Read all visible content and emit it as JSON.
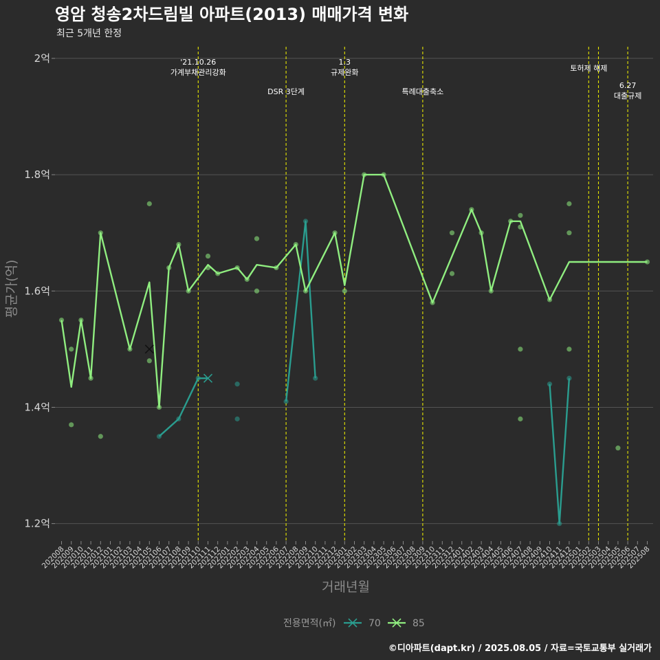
{
  "header": {
    "title": "영암 청송2차드림빌 아파트(2013) 매매가격 변화",
    "subtitle": "최근 5개년 한정"
  },
  "caption": "©디아파트(dapt.kr) / 2025.08.05 / 자료=국토교통부 실거래가",
  "chart_data": {
    "type": "line",
    "xlabel": "거래년월",
    "ylabel": "평균가(억)",
    "ylim": [
      1.17,
      2.02
    ],
    "yticks": [
      1.2,
      1.4,
      1.6,
      1.8,
      2.0
    ],
    "ytick_labels": [
      "1.2억",
      "1.4억",
      "1.6억",
      "1.8억",
      "2억"
    ],
    "grid": true,
    "legend": {
      "title": "전용면적(㎡)",
      "placement": "bottom"
    },
    "categories": [
      "202008",
      "202009",
      "202010",
      "202011",
      "202012",
      "202101",
      "202102",
      "202103",
      "202104",
      "202105",
      "202106",
      "202107",
      "202108",
      "202109",
      "202110",
      "202111",
      "202112",
      "202201",
      "202202",
      "202203",
      "202204",
      "202205",
      "202206",
      "202207",
      "202208",
      "202209",
      "202210",
      "202211",
      "202212",
      "202301",
      "202302",
      "202303",
      "202304",
      "202305",
      "202306",
      "202307",
      "202308",
      "202309",
      "202310",
      "202311",
      "202312",
      "202401",
      "202402",
      "202403",
      "202404",
      "202405",
      "202406",
      "202407",
      "202408",
      "202409",
      "202410",
      "202411",
      "202412",
      "202501",
      "202502",
      "202503",
      "202504",
      "202505",
      "202506",
      "202507",
      "202508"
    ],
    "series": [
      {
        "name": "70",
        "color": "#2a9d8f",
        "line_segments": [
          [
            [
              "202106",
              1.35
            ],
            [
              "202108",
              1.38
            ],
            [
              "202110",
              1.45
            ],
            [
              "202111",
              1.45
            ]
          ],
          [
            [
              "202207",
              1.41
            ],
            [
              "202209",
              1.72
            ],
            [
              "202210",
              1.45
            ]
          ],
          [
            [
              "202410",
              1.44
            ],
            [
              "202411",
              1.2
            ],
            [
              "202412",
              1.45
            ]
          ]
        ],
        "points": [
          [
            "202106",
            1.35
          ],
          [
            "202108",
            1.38
          ],
          [
            "202110",
            1.45
          ],
          [
            "202202",
            1.44
          ],
          [
            "202202",
            1.38
          ],
          [
            "202207",
            1.41
          ],
          [
            "202209",
            1.72
          ],
          [
            "202210",
            1.45
          ],
          [
            "202410",
            1.44
          ],
          [
            "202411",
            1.2
          ],
          [
            "202412",
            1.45
          ]
        ],
        "x_markers": [
          [
            "202111",
            1.45
          ]
        ]
      },
      {
        "name": "85",
        "color": "#90ee80",
        "line": [
          [
            "202008",
            1.55
          ],
          [
            "202009",
            1.435
          ],
          [
            "202010",
            1.55
          ],
          [
            "202011",
            1.45
          ],
          [
            "202012",
            1.7
          ],
          [
            "202103",
            1.5
          ],
          [
            "202105",
            1.615
          ],
          [
            "202106",
            1.4
          ],
          [
            "202107",
            1.64
          ],
          [
            "202108",
            1.68
          ],
          [
            "202109",
            1.6
          ],
          [
            "202111",
            1.645
          ],
          [
            "202112",
            1.63
          ],
          [
            "202202",
            1.64
          ],
          [
            "202203",
            1.62
          ],
          [
            "202204",
            1.645
          ],
          [
            "202206",
            1.64
          ],
          [
            "202208",
            1.68
          ],
          [
            "202209",
            1.6
          ],
          [
            "202212",
            1.7
          ],
          [
            "202301",
            1.61
          ],
          [
            "202303",
            1.8
          ],
          [
            "202305",
            1.8
          ],
          [
            "202310",
            1.58
          ],
          [
            "202402",
            1.74
          ],
          [
            "202403",
            1.7
          ],
          [
            "202404",
            1.6
          ],
          [
            "202406",
            1.72
          ],
          [
            "202407",
            1.72
          ],
          [
            "202410",
            1.585
          ],
          [
            "202412",
            1.65
          ],
          [
            "202508",
            1.65
          ]
        ],
        "points": [
          [
            "202008",
            1.55
          ],
          [
            "202009",
            1.5
          ],
          [
            "202009",
            1.37
          ],
          [
            "202010",
            1.55
          ],
          [
            "202011",
            1.45
          ],
          [
            "202012",
            1.7
          ],
          [
            "202012",
            1.35
          ],
          [
            "202103",
            1.5
          ],
          [
            "202105",
            1.75
          ],
          [
            "202105",
            1.48
          ],
          [
            "202106",
            1.4
          ],
          [
            "202107",
            1.64
          ],
          [
            "202108",
            1.68
          ],
          [
            "202109",
            1.6
          ],
          [
            "202111",
            1.66
          ],
          [
            "202111",
            1.64
          ],
          [
            "202112",
            1.63
          ],
          [
            "202202",
            1.64
          ],
          [
            "202203",
            1.62
          ],
          [
            "202204",
            1.69
          ],
          [
            "202204",
            1.6
          ],
          [
            "202206",
            1.64
          ],
          [
            "202208",
            1.68
          ],
          [
            "202209",
            1.6
          ],
          [
            "202212",
            1.7
          ],
          [
            "202301",
            1.6
          ],
          [
            "202303",
            1.8
          ],
          [
            "202305",
            1.8
          ],
          [
            "202310",
            1.58
          ],
          [
            "202312",
            1.7
          ],
          [
            "202312",
            1.63
          ],
          [
            "202402",
            1.74
          ],
          [
            "202403",
            1.7
          ],
          [
            "202404",
            1.6
          ],
          [
            "202406",
            1.72
          ],
          [
            "202407",
            1.73
          ],
          [
            "202407",
            1.71
          ],
          [
            "202407",
            1.5
          ],
          [
            "202407",
            1.38
          ],
          [
            "202410",
            1.585
          ],
          [
            "202412",
            1.75
          ],
          [
            "202412",
            1.7
          ],
          [
            "202412",
            1.5
          ],
          [
            "202505",
            1.33
          ],
          [
            "202508",
            1.65
          ]
        ],
        "x_markers": [
          [
            "202105",
            1.5
          ]
        ]
      }
    ],
    "events": [
      {
        "x": "202110",
        "label": "'21.10.26\n가계부채관리강화",
        "label_level": "top"
      },
      {
        "x": "202207",
        "label": "DSR 3단계",
        "label_level": "low"
      },
      {
        "x": "202301",
        "label": "1.3\n규제완화",
        "label_level": "top"
      },
      {
        "x": "202309",
        "label": "특례대출축소",
        "label_level": "low"
      },
      {
        "x": "202502",
        "label": "토허제 해제",
        "label_level": "mid"
      },
      {
        "x": "202503",
        "label": "",
        "label_level": "none"
      },
      {
        "x": "202506",
        "label": "6.27\n대출규제",
        "label_level": "low2"
      }
    ],
    "event_line_color": "#e8e800"
  }
}
